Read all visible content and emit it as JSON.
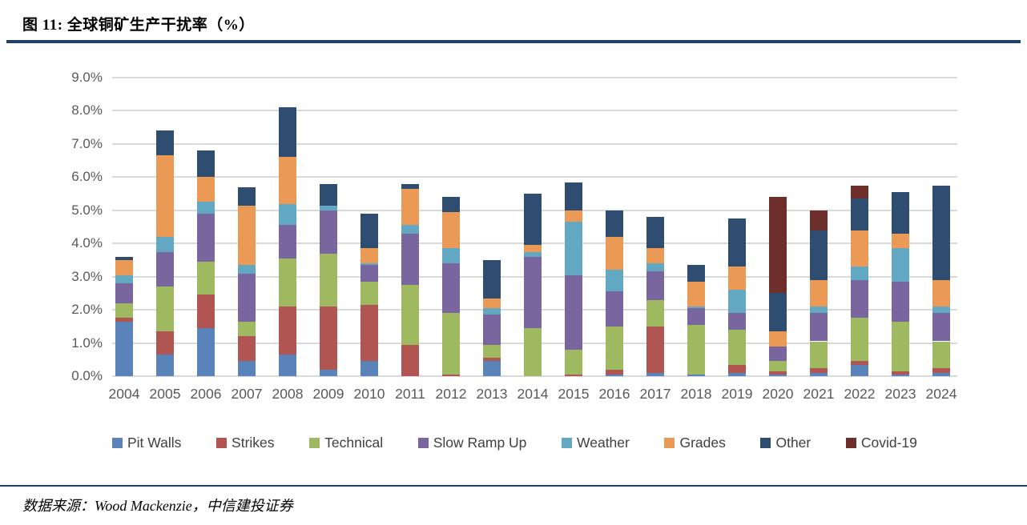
{
  "page": {
    "title": "图 11: 全球铜矿生产干扰率（%）",
    "source_note": "数据来源：Wood Mackenzie，中信建投证券"
  },
  "colors": {
    "rule_accent": "#1e4164",
    "gridline": "#d9d9d9",
    "axis_label": "#595959",
    "legend_label": "#404040"
  },
  "chart_data": {
    "type": "bar",
    "stacked": true,
    "title": "全球铜矿生产干扰率（%）",
    "grid": true,
    "legend_position": "bottom",
    "ylim": [
      0,
      9
    ],
    "ytick_labels": [
      "0.0%",
      "1.0%",
      "2.0%",
      "3.0%",
      "4.0%",
      "5.0%",
      "6.0%",
      "7.0%",
      "8.0%",
      "9.0%"
    ],
    "categories": [
      "2004",
      "2005",
      "2006",
      "2007",
      "2008",
      "2009",
      "2010",
      "2011",
      "2012",
      "2013",
      "2014",
      "2015",
      "2016",
      "2017",
      "2018",
      "2019",
      "2020",
      "2021",
      "2022",
      "2023",
      "2024"
    ],
    "series": [
      {
        "name": "Pit Walls",
        "color": "#5a83ba",
        "values": [
          1.65,
          0.65,
          1.45,
          0.45,
          0.65,
          0.2,
          0.45,
          0.0,
          0.0,
          0.45,
          0.0,
          0.0,
          0.05,
          0.1,
          0.05,
          0.1,
          0.05,
          0.1,
          0.35,
          0.05,
          0.1
        ]
      },
      {
        "name": "Strikes",
        "color": "#b05551",
        "values": [
          0.1,
          0.7,
          1.0,
          0.75,
          1.45,
          1.9,
          1.7,
          0.95,
          0.05,
          0.1,
          0.0,
          0.05,
          0.15,
          1.4,
          0.0,
          0.25,
          0.1,
          0.15,
          0.1,
          0.1,
          0.15
        ]
      },
      {
        "name": "Technical",
        "color": "#9fb960",
        "values": [
          0.45,
          1.35,
          1.0,
          0.45,
          1.45,
          1.6,
          0.7,
          1.8,
          1.85,
          0.4,
          1.45,
          0.75,
          1.3,
          0.8,
          1.5,
          1.05,
          0.3,
          0.8,
          1.3,
          1.5,
          0.8
        ]
      },
      {
        "name": "Slow Ramp Up",
        "color": "#79669f",
        "values": [
          0.6,
          1.05,
          1.45,
          1.45,
          1.0,
          1.3,
          0.5,
          1.55,
          1.5,
          0.9,
          2.15,
          2.25,
          1.05,
          0.85,
          0.5,
          0.5,
          0.45,
          0.85,
          1.15,
          1.2,
          0.85
        ]
      },
      {
        "name": "Weather",
        "color": "#63a8c2",
        "values": [
          0.25,
          0.45,
          0.35,
          0.25,
          0.65,
          0.15,
          0.05,
          0.25,
          0.45,
          0.2,
          0.15,
          1.6,
          0.65,
          0.25,
          0.05,
          0.7,
          0.0,
          0.2,
          0.4,
          1.0,
          0.2
        ]
      },
      {
        "name": "Grades",
        "color": "#ea9a54",
        "values": [
          0.45,
          2.45,
          0.75,
          1.8,
          1.4,
          0.0,
          0.45,
          1.1,
          1.1,
          0.3,
          0.2,
          0.35,
          1.0,
          0.45,
          0.75,
          0.7,
          0.45,
          0.8,
          1.1,
          0.45,
          0.8
        ]
      },
      {
        "name": "Other",
        "color": "#2e4d71",
        "values": [
          0.1,
          0.75,
          0.8,
          0.55,
          1.5,
          0.65,
          1.05,
          0.15,
          0.45,
          1.15,
          1.55,
          0.85,
          0.8,
          0.95,
          0.5,
          1.45,
          1.15,
          1.5,
          0.95,
          1.25,
          2.85
        ]
      },
      {
        "name": "Covid-19",
        "color": "#6e2e2b",
        "values": [
          0,
          0,
          0,
          0,
          0,
          0,
          0,
          0,
          0,
          0,
          0,
          0,
          0,
          0,
          0,
          0,
          2.9,
          0.6,
          0.4,
          0.0,
          0.0
        ]
      }
    ]
  }
}
